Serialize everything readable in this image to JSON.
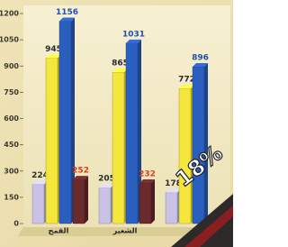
{
  "chart_data": {
    "type": "bar3d",
    "categories": [
      "القمح",
      "الشعير",
      null
    ],
    "series": [
      {
        "color": "#c9c1e6",
        "label_color": "#2a2a2a",
        "values": [
          224,
          205,
          178
        ]
      },
      {
        "color": "#f4e63a",
        "label_color": "#2a2a2a",
        "values": [
          945,
          865,
          772
        ]
      },
      {
        "color": "#2b5fbf",
        "label_color": "#1f4fb0",
        "values": [
          1156,
          1031,
          896
        ]
      },
      {
        "color": "#6b2a2c",
        "label_color": "#d8401c",
        "values": [
          252,
          232,
          null
        ]
      }
    ],
    "ylim": [
      0,
      1200
    ],
    "yticks": [
      0,
      150,
      300,
      450,
      600,
      750,
      900,
      1050,
      1200
    ],
    "annotation": "18%"
  }
}
